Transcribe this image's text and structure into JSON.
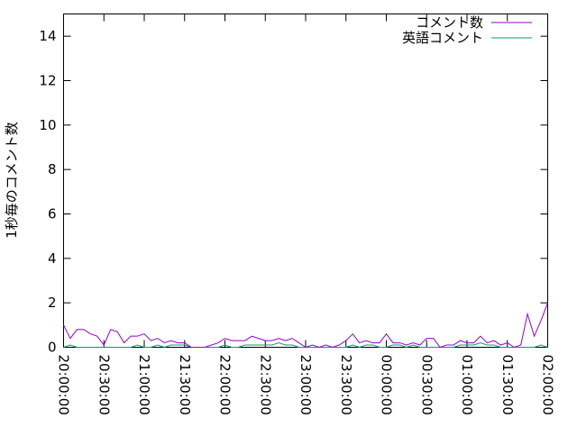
{
  "chart_data": {
    "type": "line",
    "ylabel": "1秒毎のコメント数",
    "xlabel": "",
    "ylim": [
      0,
      15
    ],
    "yticks": [
      0,
      2,
      4,
      6,
      8,
      10,
      12,
      14
    ],
    "xticks": [
      "20:00:00",
      "20:30:00",
      "21:00:00",
      "21:30:00",
      "22:00:00",
      "22:30:00",
      "23:00:00",
      "23:30:00",
      "00:00:00",
      "00:30:00",
      "01:00:00",
      "01:30:00",
      "02:00:00"
    ],
    "x_start": "20:00:00",
    "x_end": "02:00:00",
    "x_step_minutes": 5,
    "grid": false,
    "legend_position": "top-right",
    "series": [
      {
        "name": "コメント数",
        "color": "#9400d3",
        "values": [
          1.0,
          0.4,
          0.8,
          0.8,
          0.6,
          0.5,
          0.1,
          0.8,
          0.7,
          0.2,
          0.5,
          0.5,
          0.6,
          0.3,
          0.4,
          0.2,
          0.3,
          0.2,
          0.2,
          0.0,
          0.0,
          0.0,
          0.1,
          0.2,
          0.4,
          0.3,
          0.3,
          0.3,
          0.5,
          0.4,
          0.3,
          0.3,
          0.4,
          0.3,
          0.4,
          0.2,
          0.0,
          0.1,
          0.0,
          0.1,
          0.0,
          0.1,
          0.3,
          0.6,
          0.2,
          0.3,
          0.2,
          0.2,
          0.6,
          0.2,
          0.2,
          0.1,
          0.2,
          0.1,
          0.4,
          0.4,
          0.0,
          0.1,
          0.1,
          0.3,
          0.2,
          0.2,
          0.5,
          0.2,
          0.3,
          0.1,
          0.2,
          0.0,
          0.1,
          1.5,
          0.5,
          1.2,
          2.0
        ]
      },
      {
        "name": "英語コメント",
        "color": "#009e73",
        "values": [
          0.0,
          0.1,
          0.0,
          0.0,
          0.0,
          0.0,
          0.0,
          0.0,
          0.0,
          0.0,
          0.0,
          0.1,
          0.0,
          0.0,
          0.1,
          0.0,
          0.1,
          0.1,
          0.1,
          0.0,
          0.0,
          0.0,
          0.0,
          0.0,
          0.1,
          0.0,
          0.0,
          0.1,
          0.1,
          0.1,
          0.1,
          0.1,
          0.2,
          0.1,
          0.1,
          0.0,
          0.0,
          0.0,
          0.0,
          0.0,
          0.0,
          0.0,
          0.0,
          0.1,
          0.0,
          0.1,
          0.1,
          0.0,
          0.0,
          0.1,
          0.1,
          0.0,
          0.1,
          0.0,
          0.0,
          0.0,
          0.0,
          0.0,
          0.0,
          0.1,
          0.1,
          0.1,
          0.2,
          0.1,
          0.1,
          0.0,
          0.0,
          0.0,
          0.0,
          0.0,
          0.0,
          0.1,
          0.0
        ]
      }
    ]
  }
}
